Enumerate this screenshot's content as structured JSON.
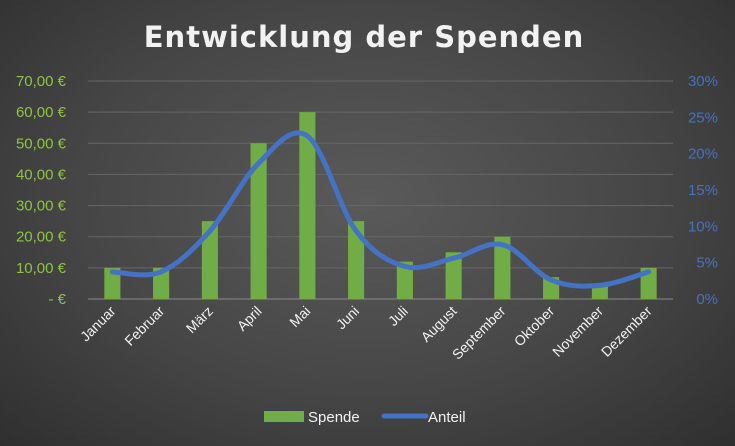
{
  "chart_data": {
    "type": "bar",
    "title": "Entwicklung der Spenden",
    "categories": [
      "Januar",
      "Februar",
      "März",
      "April",
      "Mai",
      "Juni",
      "Juli",
      "August",
      "September",
      "Oktober",
      "November",
      "Dezember"
    ],
    "series": [
      {
        "name": "Spende",
        "type": "bar",
        "axis": "left",
        "values": [
          10,
          10,
          25,
          50,
          60,
          25,
          12,
          15,
          20,
          7,
          5,
          10
        ],
        "color": "#70ad47"
      },
      {
        "name": "Anteil",
        "type": "line",
        "axis": "right",
        "values": [
          0.0374,
          0.0374,
          0.0935,
          0.1869,
          0.2243,
          0.0935,
          0.0449,
          0.0561,
          0.0748,
          0.0262,
          0.0187,
          0.0374
        ],
        "color": "#4472c4"
      }
    ],
    "y_left": {
      "min": 0,
      "max": 70,
      "step": 10,
      "tick_labels": [
        "-   €",
        "10,00 €",
        "20,00 €",
        "30,00 €",
        "40,00 €",
        "50,00 €",
        "60,00 €",
        "70,00 €"
      ],
      "color": "#8dc63f"
    },
    "y_right": {
      "min": 0,
      "max": 0.3,
      "step": 0.05,
      "tick_labels": [
        "0%",
        "5%",
        "10%",
        "15%",
        "20%",
        "25%",
        "30%"
      ],
      "color": "#4472c4"
    },
    "grid": true,
    "legend": {
      "position": "bottom",
      "entries": [
        "Spende",
        "Anteil"
      ]
    }
  }
}
